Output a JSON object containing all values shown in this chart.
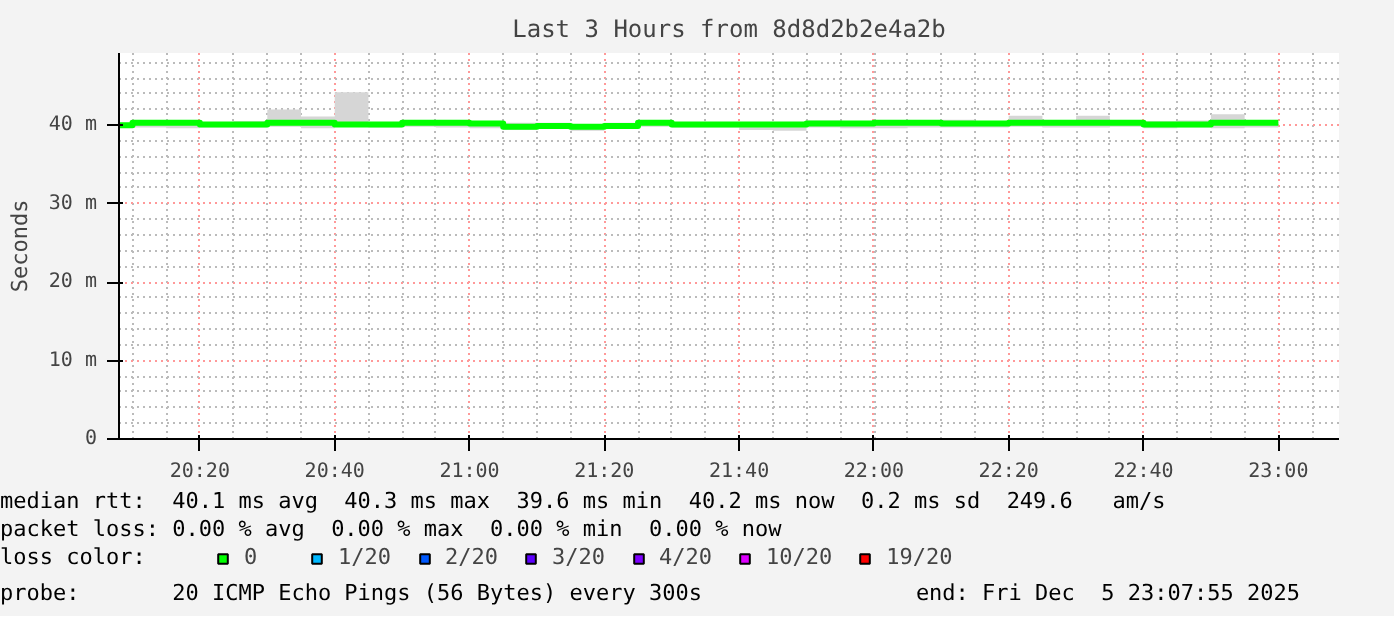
{
  "chart_data": {
    "type": "step",
    "title": "Last 3 Hours from 8d8d2b2e4a2b",
    "ylabel": "Seconds",
    "xlim": [
      20.1333,
      23.15
    ],
    "ylim": [
      0,
      49.2
    ],
    "xticks": [
      {
        "value": 20.3333,
        "label": "20:20"
      },
      {
        "value": 20.6667,
        "label": "20:40"
      },
      {
        "value": 21.0,
        "label": "21:00"
      },
      {
        "value": 21.3333,
        "label": "21:20"
      },
      {
        "value": 21.6667,
        "label": "21:40"
      },
      {
        "value": 22.0,
        "label": "22:00"
      },
      {
        "value": 22.3333,
        "label": "22:20"
      },
      {
        "value": 22.6667,
        "label": "22:40"
      },
      {
        "value": 23.0,
        "label": "23:00"
      }
    ],
    "yticks": [
      {
        "value": 0,
        "label": "0"
      },
      {
        "value": 10,
        "label": "10 m"
      },
      {
        "value": 20,
        "label": "20 m"
      },
      {
        "value": 30,
        "label": "30 m"
      },
      {
        "value": 40,
        "label": "40 m"
      }
    ],
    "grid": true,
    "legend": "bottom",
    "legend_title": "loss color:",
    "series": [
      {
        "name": "0",
        "color": "#00ff00",
        "x": [
          20.1333,
          20.1667,
          20.25,
          20.3333,
          20.4167,
          20.5,
          20.5833,
          20.6667,
          20.75,
          20.8333,
          20.9167,
          21.0,
          21.0833,
          21.1667,
          21.25,
          21.3333,
          21.4167,
          21.5,
          21.5833,
          21.6667,
          21.75,
          21.8333,
          21.9167,
          22.0,
          22.0833,
          22.1667,
          22.25,
          22.3333,
          22.4167,
          22.5,
          22.5833,
          22.6667,
          22.75,
          22.8333,
          22.9167,
          23.0
        ],
        "values": [
          40.0,
          40.3,
          40.3,
          40.1,
          40.1,
          40.3,
          40.3,
          40.1,
          40.1,
          40.3,
          40.3,
          40.2,
          39.8,
          39.9,
          39.8,
          39.9,
          40.3,
          40.1,
          40.1,
          40.1,
          40.1,
          40.2,
          40.2,
          40.3,
          40.3,
          40.2,
          40.2,
          40.3,
          40.3,
          40.3,
          40.3,
          40.1,
          40.1,
          40.3,
          40.3,
          40.3
        ],
        "lower": [
          39.7,
          39.7,
          39.6,
          39.7,
          39.7,
          39.8,
          39.6,
          39.8,
          39.7,
          39.8,
          39.7,
          39.6,
          39.4,
          39.5,
          39.3,
          39.6,
          39.8,
          39.7,
          39.7,
          39.4,
          39.3,
          39.7,
          39.6,
          39.6,
          39.7,
          39.7,
          39.7,
          39.8,
          39.7,
          39.7,
          39.8,
          39.6,
          39.7,
          39.6,
          39.7,
          39.7
        ],
        "upper": [
          40.3,
          40.4,
          40.4,
          40.2,
          40.5,
          42.0,
          41.1,
          44.2,
          40.4,
          40.4,
          40.4,
          40.5,
          40.3,
          40.3,
          40.1,
          40.3,
          40.5,
          40.2,
          40.2,
          40.3,
          40.4,
          40.6,
          40.5,
          40.4,
          40.4,
          40.7,
          40.5,
          41.2,
          40.4,
          41.2,
          40.4,
          40.5,
          40.6,
          41.4,
          40.4,
          40.4
        ]
      },
      {
        "name": "1/20",
        "color": "#00b8ff"
      },
      {
        "name": "2/20",
        "color": "#0059ff"
      },
      {
        "name": "3/20",
        "color": "#5e00ff"
      },
      {
        "name": "4/20",
        "color": "#7e00ff"
      },
      {
        "name": "10/20",
        "color": "#dd00ff"
      },
      {
        "name": "19/20",
        "color": "#ff0000"
      }
    ],
    "annotations": [
      "median rtt:  40.1 ms avg  40.3 ms max  39.6 ms min  40.2 ms now  0.2 ms sd  249.6   am/s",
      "packet loss: 0.00 % avg  0.00 % max  0.00 % min  0.00 % now",
      "probe:       20 ICMP Echo Pings (56 Bytes) every 300s",
      "end: Fri Dec  5 23:07:55 2025"
    ]
  }
}
